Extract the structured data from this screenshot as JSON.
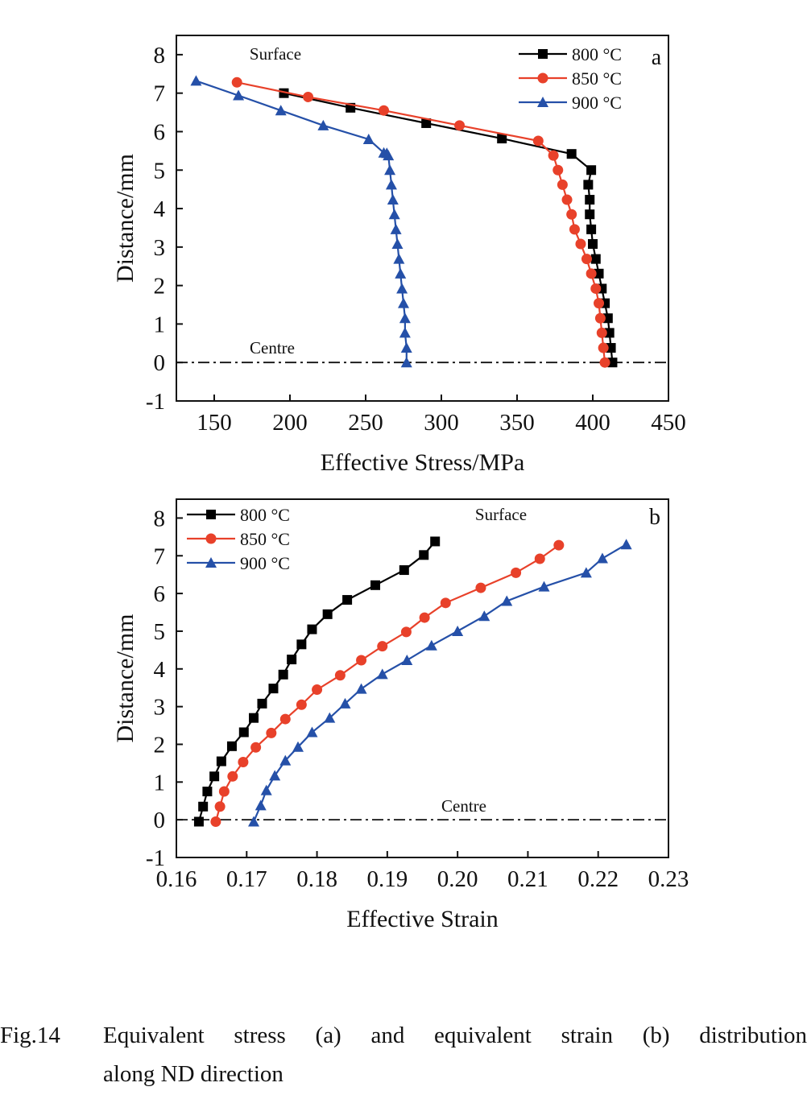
{
  "chart_data": [
    {
      "type": "line",
      "panel_label": "a",
      "xlabel": "Effective Stress/MPa",
      "ylabel": "Distance/mm",
      "xlim": [
        125,
        450
      ],
      "ylim": [
        -1,
        8.5
      ],
      "xticks": [
        150,
        200,
        250,
        300,
        350,
        400,
        450
      ],
      "yticks": [
        -1,
        0,
        1,
        2,
        3,
        4,
        5,
        6,
        7,
        8
      ],
      "legend": "top-right",
      "grid": false,
      "annotations": {
        "surface": "Surface",
        "centre": "Centre"
      },
      "centre_line_y": 0,
      "series": [
        {
          "name": "800 °C",
          "color": "#000000",
          "marker": "square",
          "x": [
            413,
            412,
            411,
            410,
            408,
            406,
            404,
            402,
            400,
            399,
            398,
            398,
            397,
            399,
            386,
            340,
            290,
            240,
            196
          ],
          "y": [
            0,
            0.38,
            0.77,
            1.15,
            1.54,
            1.92,
            2.31,
            2.69,
            3.08,
            3.46,
            3.85,
            4.23,
            4.62,
            5.0,
            5.42,
            5.82,
            6.22,
            6.62,
            7.0
          ]
        },
        {
          "name": "850 °C",
          "color": "#e8412a",
          "marker": "circle",
          "x": [
            408,
            407,
            406,
            405,
            404,
            402,
            399,
            396,
            392,
            388,
            386,
            383,
            380,
            377,
            374,
            364,
            312,
            262,
            212,
            165
          ],
          "y": [
            0,
            0.38,
            0.77,
            1.15,
            1.54,
            1.92,
            2.31,
            2.69,
            3.08,
            3.46,
            3.85,
            4.23,
            4.62,
            5.0,
            5.38,
            5.76,
            6.16,
            6.55,
            6.9,
            7.28
          ]
        },
        {
          "name": "900 °C",
          "color": "#2550a8",
          "marker": "triangle",
          "x": [
            277,
            277,
            276,
            276,
            275,
            274,
            273,
            272,
            271,
            270,
            269,
            268,
            267,
            266,
            265,
            264,
            262,
            252,
            222,
            194,
            166,
            138
          ],
          "y": [
            0,
            0.38,
            0.77,
            1.15,
            1.54,
            1.92,
            2.31,
            2.69,
            3.08,
            3.46,
            3.85,
            4.23,
            4.62,
            5.0,
            5.38,
            5.44,
            5.45,
            5.8,
            6.16,
            6.55,
            6.94,
            7.32
          ]
        }
      ]
    },
    {
      "type": "line",
      "panel_label": "b",
      "xlabel": "Effective Strain",
      "ylabel": "Distance/mm",
      "xlim": [
        0.16,
        0.23
      ],
      "ylim": [
        -1,
        8.5
      ],
      "xticks": [
        0.16,
        0.17,
        0.18,
        0.19,
        0.2,
        0.21,
        0.22,
        0.23
      ],
      "yticks": [
        -1,
        0,
        1,
        2,
        3,
        4,
        5,
        6,
        7,
        8
      ],
      "legend": "top-left",
      "grid": false,
      "annotations": {
        "surface": "Surface",
        "centre": "Centre"
      },
      "centre_line_y": 0,
      "series": [
        {
          "name": "800 °C",
          "color": "#000000",
          "marker": "square",
          "x": [
            0.1632,
            0.1638,
            0.1644,
            0.1654,
            0.1664,
            0.1679,
            0.1696,
            0.171,
            0.1722,
            0.1738,
            0.1752,
            0.1764,
            0.1778,
            0.1793,
            0.1815,
            0.1843,
            0.1883,
            0.1924,
            0.1952,
            0.1968
          ],
          "y": [
            -0.05,
            0.35,
            0.75,
            1.15,
            1.55,
            1.95,
            2.32,
            2.7,
            3.08,
            3.48,
            3.85,
            4.25,
            4.65,
            5.05,
            5.45,
            5.83,
            6.22,
            6.62,
            7.02,
            7.38
          ]
        },
        {
          "name": "850 °C",
          "color": "#e8412a",
          "marker": "circle",
          "x": [
            0.1656,
            0.1662,
            0.1668,
            0.168,
            0.1695,
            0.1713,
            0.1735,
            0.1755,
            0.1778,
            0.18,
            0.1833,
            0.1863,
            0.1893,
            0.1927,
            0.1953,
            0.1983,
            0.2033,
            0.2083,
            0.2117,
            0.2144
          ],
          "y": [
            -0.05,
            0.35,
            0.75,
            1.15,
            1.53,
            1.92,
            2.3,
            2.67,
            3.05,
            3.45,
            3.83,
            4.23,
            4.6,
            4.98,
            5.36,
            5.75,
            6.15,
            6.55,
            6.92,
            7.28
          ]
        },
        {
          "name": "900 °C",
          "color": "#2550a8",
          "marker": "triangle",
          "x": [
            0.171,
            0.172,
            0.1728,
            0.174,
            0.1755,
            0.1773,
            0.1793,
            0.1818,
            0.184,
            0.1863,
            0.1893,
            0.1928,
            0.1963,
            0.2,
            0.2038,
            0.207,
            0.2123,
            0.2183,
            0.2206,
            0.224
          ],
          "y": [
            -0.05,
            0.38,
            0.78,
            1.17,
            1.57,
            1.93,
            2.32,
            2.7,
            3.08,
            3.47,
            3.86,
            4.23,
            4.62,
            5.0,
            5.4,
            5.8,
            6.18,
            6.55,
            6.93,
            7.3
          ]
        }
      ]
    }
  ],
  "caption": {
    "number": "Fig.14",
    "line1": "Equivalent stress (a) and equivalent strain (b) distribution",
    "line2": "along ND direction"
  }
}
